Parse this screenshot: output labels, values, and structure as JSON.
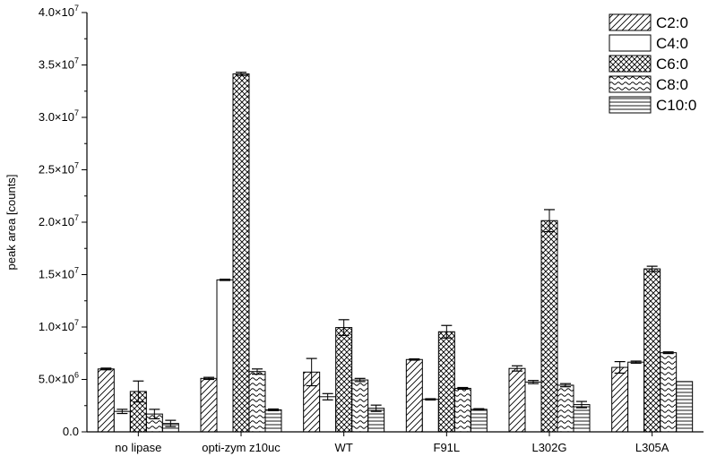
{
  "chart_data": {
    "type": "bar",
    "ylabel": "peak area [counts]",
    "xlabel": "",
    "ylim": [
      0,
      40000000
    ],
    "yticks": [
      0,
      5000000,
      10000000,
      15000000,
      20000000,
      25000000,
      30000000,
      35000000,
      40000000
    ],
    "ytick_labels": [
      {
        "mantissa": "0.0",
        "exponent": ""
      },
      {
        "mantissa": "5.0×10",
        "exponent": "6"
      },
      {
        "mantissa": "1.0×10",
        "exponent": "7"
      },
      {
        "mantissa": "1.5×10",
        "exponent": "7"
      },
      {
        "mantissa": "2.0×10",
        "exponent": "7"
      },
      {
        "mantissa": "2.5×10",
        "exponent": "7"
      },
      {
        "mantissa": "3.0×10",
        "exponent": "7"
      },
      {
        "mantissa": "3.5×10",
        "exponent": "7"
      },
      {
        "mantissa": "4.0×10",
        "exponent": "7"
      }
    ],
    "categories": [
      "no lipase",
      "opti-zym z10uc",
      "WT",
      "F91L",
      "L302G",
      "L305A"
    ],
    "legend_position": "top-right",
    "series": [
      {
        "name": "C2:0",
        "pattern": "diagonal",
        "values": [
          6000000,
          5100000,
          5700000,
          6900000,
          6050000,
          6150000
        ],
        "errors": [
          80000,
          100000,
          1300000,
          60000,
          250000,
          550000
        ]
      },
      {
        "name": "C4:0",
        "pattern": "empty",
        "values": [
          1950000,
          14500000,
          3350000,
          3100000,
          4750000,
          6650000
        ],
        "errors": [
          200000,
          60000,
          300000,
          60000,
          150000,
          100000
        ]
      },
      {
        "name": "C6:0",
        "pattern": "crosshatch",
        "values": [
          3850000,
          34150000,
          9950000,
          9550000,
          20150000,
          15550000
        ],
        "errors": [
          1000000,
          150000,
          750000,
          600000,
          1050000,
          250000
        ]
      },
      {
        "name": "C8:0",
        "pattern": "wave",
        "values": [
          1700000,
          5750000,
          4950000,
          4150000,
          4450000,
          7550000
        ],
        "errors": [
          450000,
          250000,
          150000,
          80000,
          150000,
          80000
        ]
      },
      {
        "name": "C10:0",
        "pattern": "horizontal",
        "values": [
          800000,
          2100000,
          2250000,
          2150000,
          2600000,
          4800000
        ],
        "errors": [
          300000,
          80000,
          300000,
          60000,
          300000,
          0
        ]
      }
    ]
  }
}
